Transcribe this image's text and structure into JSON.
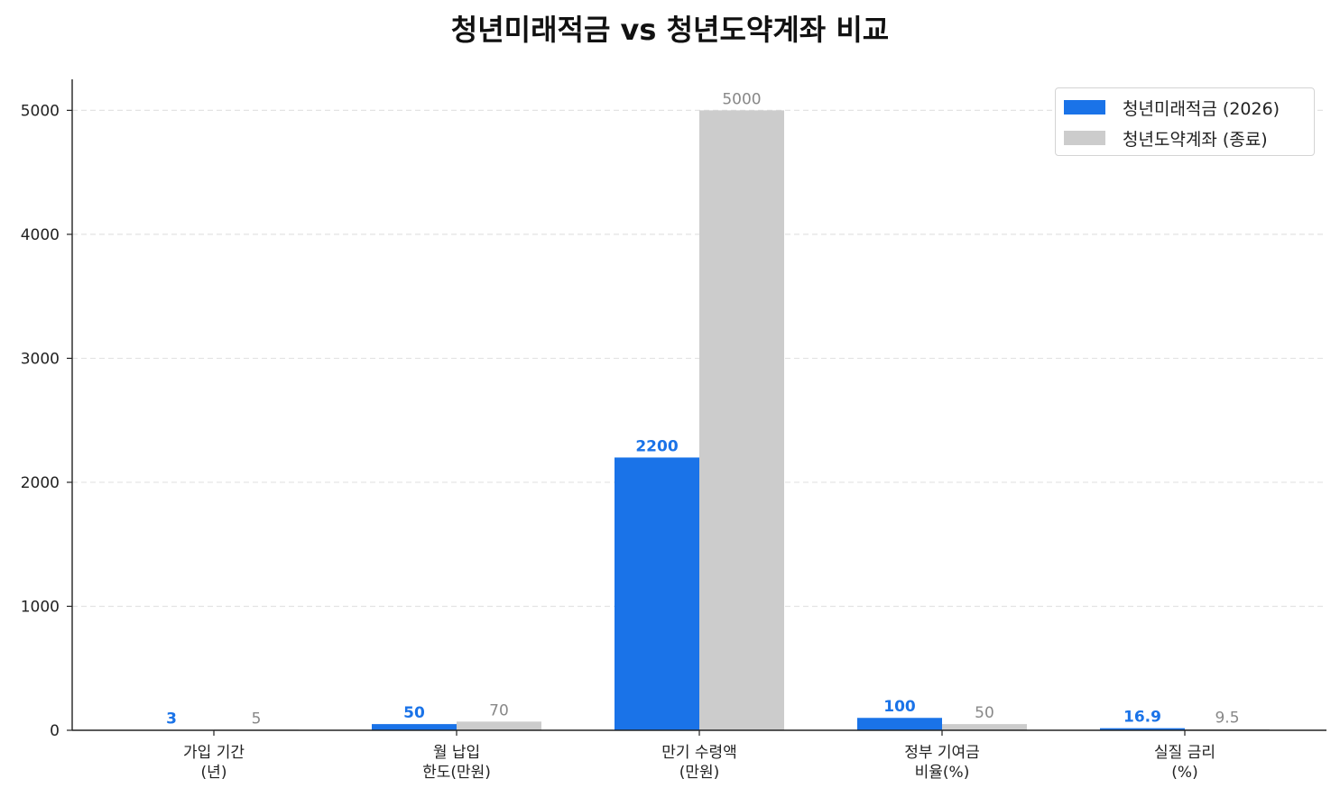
{
  "chart_data": {
    "type": "bar",
    "title": "청년미래적금 vs 청년도약계좌 비교",
    "categories": [
      [
        "가입 기간",
        "(년)"
      ],
      [
        "월 납입",
        "한도(만원)"
      ],
      [
        "만기 수령액",
        "(만원)"
      ],
      [
        "정부 기여금",
        "비율(%)"
      ],
      [
        "실질 금리",
        "(%)"
      ]
    ],
    "series": [
      {
        "name": "청년미래적금 (2026)",
        "values": [
          3,
          50,
          2200,
          100,
          16.9
        ],
        "labels": [
          "3",
          "50",
          "2200",
          "100",
          "16.9"
        ],
        "color": "#1a73e8",
        "label_color": "#1a73e8"
      },
      {
        "name": "청년도약계좌 (종료)",
        "values": [
          5,
          70,
          5000,
          50,
          9.5
        ],
        "labels": [
          "5",
          "70",
          "5000",
          "50",
          "9.5"
        ],
        "color": "#cccccc",
        "label_color": "#888888"
      }
    ],
    "ylim": [
      0,
      5250
    ],
    "yticks": [
      0,
      1000,
      2000,
      3000,
      4000,
      5000
    ],
    "ytick_labels": [
      "0",
      "1000",
      "2000",
      "3000",
      "4000",
      "5000"
    ],
    "grid": "y-dashed",
    "legend_position": "top-right",
    "xlabel": "",
    "ylabel": ""
  }
}
